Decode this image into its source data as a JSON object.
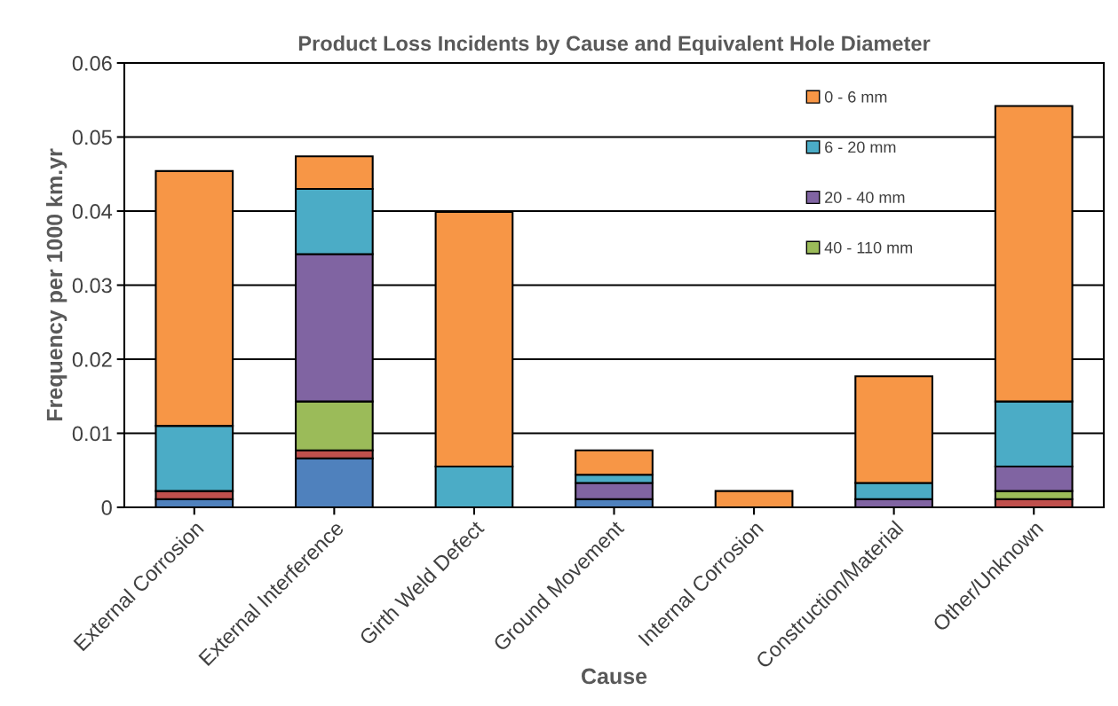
{
  "chart_data": {
    "type": "bar",
    "title": "Product Loss Incidents by Cause and Equivalent Hole Diameter",
    "xlabel": "Cause",
    "ylabel": "Frequency per 1000 km.yr",
    "categories": [
      "External Corrosion",
      "External Interference",
      "Girth Weld Defect",
      "Ground Movement",
      "Internal Corrosion",
      "Construction/Material",
      "Other/Unknown"
    ],
    "stacked": true,
    "series": [
      {
        "color": "#4f81bd",
        "values": [
          0.0011,
          0.0066,
          0,
          0.0011,
          0,
          0,
          0
        ]
      },
      {
        "color": "#c0504d",
        "values": [
          0.0011,
          0.0011,
          0,
          0,
          0,
          0,
          0.0011
        ]
      },
      {
        "name": "40 - 110 mm",
        "color": "#9bbb59",
        "values": [
          0,
          0.0066,
          0,
          0,
          0,
          0,
          0.0011
        ]
      },
      {
        "name": "20 - 40 mm",
        "color": "#8064a2",
        "values": [
          0,
          0.0199,
          0,
          0.0022,
          0,
          0.0011,
          0.0033
        ]
      },
      {
        "name": "6 - 20 mm",
        "color": "#4bacc6",
        "values": [
          0.0088,
          0.0088,
          0.0055,
          0.0011,
          0,
          0.0022,
          0.0088
        ]
      },
      {
        "name": "0 - 6 mm",
        "color": "#f79646",
        "values": [
          0.0344,
          0.0044,
          0.0344,
          0.0033,
          0.0022,
          0.0144,
          0.0399
        ]
      }
    ],
    "ylim": [
      0,
      0.06
    ],
    "yticks": [
      {
        "value": 0,
        "label": "0"
      },
      0.01,
      0.02,
      0.03,
      0.04,
      0.05,
      0.06
    ],
    "grid": "y",
    "legend": "top right"
  }
}
